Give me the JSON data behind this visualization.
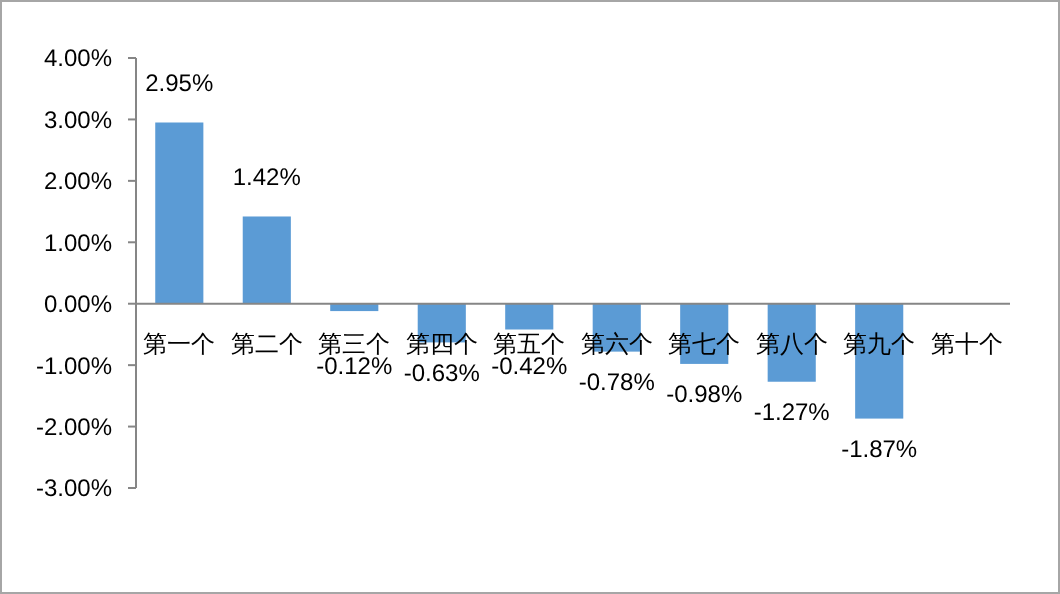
{
  "chart_data": {
    "type": "bar",
    "categories": [
      "第一个",
      "第二个",
      "第三个",
      "第四个",
      "第五个",
      "第六个",
      "第七个",
      "第八个",
      "第九个",
      "第十个"
    ],
    "values": [
      2.95,
      1.42,
      -0.12,
      -0.63,
      -0.42,
      -0.78,
      -0.98,
      -1.27,
      -1.87,
      null
    ],
    "value_labels": [
      "2.95%",
      "1.42%",
      "-0.12%",
      "-0.63%",
      "-0.42%",
      "-0.78%",
      "-0.98%",
      "-1.27%",
      "-1.87%",
      null
    ],
    "color": "#5b9bd5",
    "ylim": [
      -3,
      4
    ],
    "yticks": [
      {
        "value": -3,
        "label": "-3.00%"
      },
      {
        "value": -2,
        "label": "-2.00%"
      },
      {
        "value": -1,
        "label": "-1.00%"
      },
      {
        "value": 0,
        "label": "0.00%"
      },
      {
        "value": 1,
        "label": "1.00%"
      },
      {
        "value": 2,
        "label": "2.00%"
      },
      {
        "value": 3,
        "label": "3.00%"
      },
      {
        "value": 4,
        "label": "4.00%"
      }
    ],
    "grid": false
  }
}
